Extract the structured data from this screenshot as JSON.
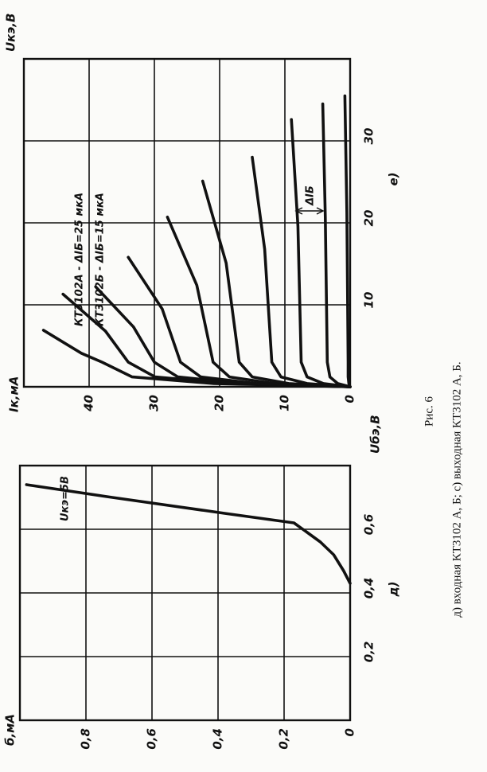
{
  "chart_data": [
    {
      "type": "line",
      "label": "д)",
      "xlabel": "Uбэ,В",
      "ylabel": "б,мА",
      "annotation": "Uкэ=5В",
      "xlim": [
        0,
        0.8
      ],
      "ylim": [
        0,
        1
      ],
      "xticks": [
        {
          "value": 0.2,
          "label": "0,2"
        },
        {
          "value": 0.4,
          "label": "0,4"
        },
        {
          "value": 0.6,
          "label": "0,6"
        }
      ],
      "yticks": [
        0,
        {
          "value": 0.2,
          "label": "0,2"
        },
        {
          "value": 0.4,
          "label": "0,4"
        },
        {
          "value": 0.6,
          "label": "0,6"
        },
        {
          "value": 0.8,
          "label": "0,8"
        }
      ],
      "grid": true,
      "series": [
        {
          "color": "#111",
          "x": [
            0.43,
            0.47,
            0.52,
            0.56,
            0.59,
            0.62,
            0.65,
            0.7,
            0.74
          ],
          "values": [
            0,
            0.02,
            0.05,
            0.09,
            0.13,
            0.17,
            0.38,
            0.72,
            0.98
          ]
        }
      ]
    },
    {
      "type": "line",
      "label": "е)",
      "xlabel": "Uкэ,В",
      "ylabel": "Iк,мА",
      "annotations": [
        "КТ3102А - ΔIБ=25 мкА",
        "КТ3102Б - ΔIБ=15 мкА",
        "ΔIБ"
      ],
      "xlim": [
        0,
        40
      ],
      "ylim": [
        0,
        50
      ],
      "xticks": [
        10,
        20,
        30
      ],
      "yticks": [
        0,
        10,
        20,
        30,
        40
      ],
      "grid": true,
      "series": [
        {
          "color": "#111",
          "x": [
            0,
            0.4,
            1.2,
            3,
            4.1,
            6.9
          ],
          "values": [
            0,
            20.9,
            33.4,
            38,
            41.2,
            47
          ]
        },
        {
          "color": "#111",
          "x": [
            0,
            0.4,
            1.2,
            3,
            6.8,
            11.3
          ],
          "values": [
            0,
            18.7,
            29.9,
            34,
            37.5,
            44
          ]
        },
        {
          "color": "#111",
          "x": [
            0,
            0.4,
            1.2,
            3,
            7.3,
            12.2
          ],
          "values": [
            0,
            16.5,
            26.4,
            30,
            33.2,
            39
          ]
        },
        {
          "color": "#111",
          "x": [
            0,
            0.4,
            1.2,
            3,
            9.5,
            15.8
          ],
          "values": [
            0,
            14.3,
            22.9,
            26,
            28.8,
            34
          ]
        },
        {
          "color": "#111",
          "x": [
            0,
            0.4,
            1.2,
            3,
            12.4,
            20.7
          ],
          "values": [
            0,
            11.6,
            18.5,
            21,
            23.5,
            28
          ]
        },
        {
          "color": "#111",
          "x": [
            0,
            0.4,
            1.2,
            3,
            15.1,
            25.1
          ],
          "values": [
            0,
            9.4,
            15,
            17,
            19,
            22.6
          ]
        },
        {
          "color": "#111",
          "x": [
            0,
            0.4,
            1.2,
            3,
            16.8,
            28
          ],
          "values": [
            0,
            6.6,
            10.6,
            12,
            13.1,
            15
          ]
        },
        {
          "color": "#111",
          "x": [
            0,
            0.4,
            1.2,
            3,
            19.6,
            32.6
          ],
          "values": [
            0,
            4.1,
            6.6,
            7.5,
            8,
            9
          ]
        },
        {
          "color": "#111",
          "x": [
            0,
            0.4,
            1.2,
            3,
            20.7,
            34.5
          ],
          "values": [
            0,
            1.9,
            3.1,
            3.5,
            3.8,
            4.2
          ]
        },
        {
          "color": "#111",
          "x": [
            0,
            0.4,
            1.2,
            3,
            21.3,
            35.5
          ],
          "values": [
            0,
            0.2,
            0.3,
            0.3,
            0.5,
            0.8
          ]
        }
      ]
    }
  ],
  "caption": {
    "figure": "Рис. 6",
    "text": "д) входная КТ3102 А, Б; с) выходная КТ3102 А, Б."
  }
}
